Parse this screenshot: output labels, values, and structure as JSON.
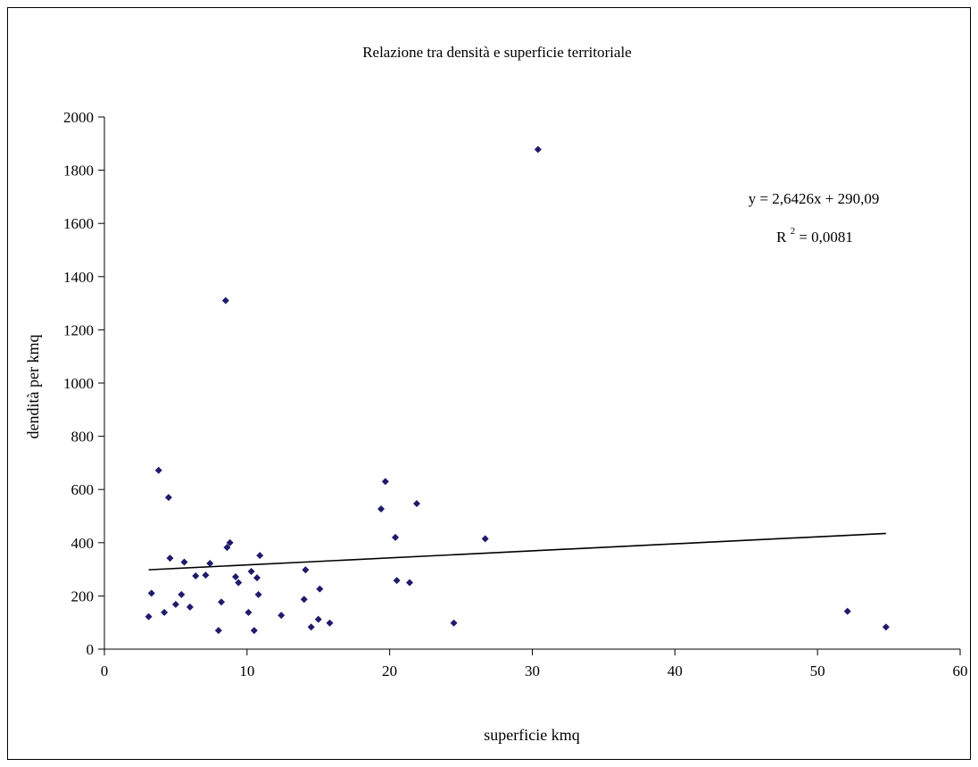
{
  "chart_data": {
    "type": "scatter",
    "title": "Relazione tra densità e superficie territoriale",
    "xlabel": "superficie kmq",
    "ylabel": "dendità per kmq",
    "xlim": [
      0,
      60
    ],
    "ylim": [
      0,
      2000
    ],
    "x_ticks": [
      "0",
      "10",
      "20",
      "30",
      "40",
      "50",
      "60"
    ],
    "y_ticks": [
      "0",
      "200",
      "400",
      "600",
      "800",
      "1000",
      "1200",
      "1400",
      "1600",
      "1800",
      "2000"
    ],
    "grid": false,
    "marker_color": "#1f1a6b",
    "points": [
      {
        "x": 3.1,
        "y": 122
      },
      {
        "x": 3.3,
        "y": 210
      },
      {
        "x": 3.8,
        "y": 672
      },
      {
        "x": 4.2,
        "y": 138
      },
      {
        "x": 4.5,
        "y": 570
      },
      {
        "x": 4.6,
        "y": 342
      },
      {
        "x": 5.0,
        "y": 168
      },
      {
        "x": 5.4,
        "y": 205
      },
      {
        "x": 5.6,
        "y": 327
      },
      {
        "x": 6.0,
        "y": 158
      },
      {
        "x": 6.4,
        "y": 275
      },
      {
        "x": 7.1,
        "y": 278
      },
      {
        "x": 7.4,
        "y": 322
      },
      {
        "x": 8.0,
        "y": 70
      },
      {
        "x": 8.2,
        "y": 177
      },
      {
        "x": 8.5,
        "y": 1310
      },
      {
        "x": 8.6,
        "y": 382
      },
      {
        "x": 8.8,
        "y": 400
      },
      {
        "x": 9.2,
        "y": 272
      },
      {
        "x": 9.4,
        "y": 250
      },
      {
        "x": 10.1,
        "y": 138
      },
      {
        "x": 10.3,
        "y": 292
      },
      {
        "x": 10.5,
        "y": 70
      },
      {
        "x": 10.7,
        "y": 268
      },
      {
        "x": 10.8,
        "y": 205
      },
      {
        "x": 10.9,
        "y": 352
      },
      {
        "x": 12.4,
        "y": 127
      },
      {
        "x": 14.0,
        "y": 187
      },
      {
        "x": 14.1,
        "y": 298
      },
      {
        "x": 14.5,
        "y": 83
      },
      {
        "x": 15.0,
        "y": 112
      },
      {
        "x": 15.1,
        "y": 226
      },
      {
        "x": 15.8,
        "y": 98
      },
      {
        "x": 19.4,
        "y": 527
      },
      {
        "x": 19.7,
        "y": 630
      },
      {
        "x": 20.4,
        "y": 420
      },
      {
        "x": 20.5,
        "y": 258
      },
      {
        "x": 21.4,
        "y": 250
      },
      {
        "x": 21.9,
        "y": 547
      },
      {
        "x": 24.5,
        "y": 98
      },
      {
        "x": 26.7,
        "y": 415
      },
      {
        "x": 30.4,
        "y": 1878
      },
      {
        "x": 52.1,
        "y": 142
      },
      {
        "x": 54.8,
        "y": 83
      }
    ],
    "trendline": {
      "slope": 2.6426,
      "intercept": 290.09,
      "x_from": 3.1,
      "x_to": 54.8,
      "equation_text": "y = 2,6426x + 290,09",
      "r2_prefix": "R",
      "r2_sup": "2",
      "r2_value": " = 0,0081"
    }
  }
}
